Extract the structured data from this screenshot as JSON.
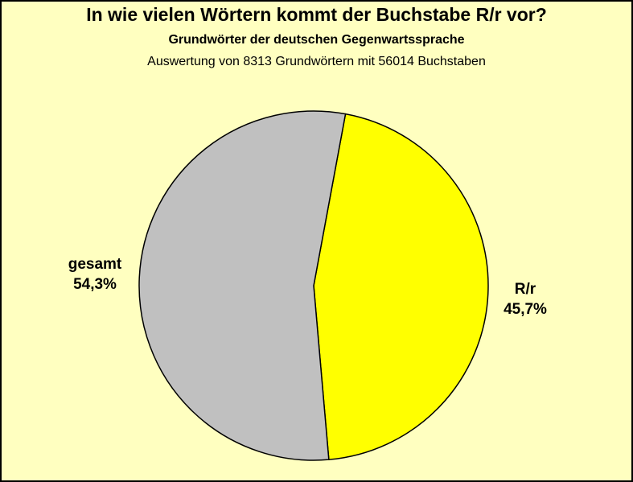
{
  "colors": {
    "background": "#ffffc0",
    "rr_slice": "#ffff00",
    "gesamt_slice": "#c0c0c0",
    "outline": "#000000"
  },
  "chart_data": {
    "type": "pie",
    "title": "In wie vielen Wörtern kommt der Buchstabe R/r vor?",
    "subtitle": "Grundwörter der deutschen Gegenwartssprache",
    "note": "Auswertung von 8313 Grundwörtern mit 56014 Buchstaben",
    "slices": [
      {
        "label": "R/r",
        "value": 45.7,
        "value_text": "45,7%",
        "color": "#ffff00"
      },
      {
        "label": "gesamt",
        "value": 54.3,
        "value_text": "54,3%",
        "color": "#c0c0c0"
      }
    ],
    "legend": "none"
  }
}
